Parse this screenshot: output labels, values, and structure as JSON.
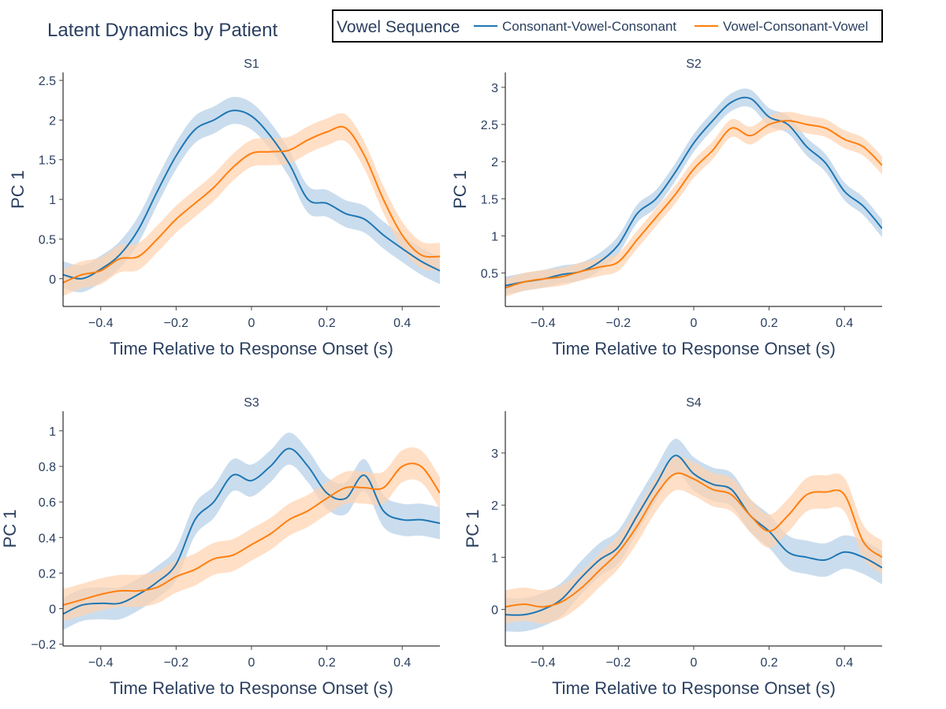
{
  "title": "Latent Dynamics by Patient",
  "legend": {
    "title": "Vowel Sequence",
    "placement": "top-right",
    "entries": [
      {
        "name": "Consonant-Vowel-Consonant",
        "color": "#1f77b4"
      },
      {
        "name": "Vowel-Consonant-Vowel",
        "color": "#ff7f0e"
      }
    ]
  },
  "colors": {
    "cvc": "#1f77b4",
    "cvc_band": "#b5d0e8",
    "vcv": "#ff7f0e",
    "vcv_band": "#ffd3b0"
  },
  "chart_data": [
    {
      "type": "line",
      "title": "S1",
      "xlabel": "Time Relative to Response Onset (s)",
      "ylabel": "PC 1",
      "xlim": [
        -0.5,
        0.5
      ],
      "ylim": [
        -0.35,
        2.6
      ],
      "xticks": [
        -0.4,
        -0.2,
        0,
        0.2,
        0.4
      ],
      "xtick_labels": [
        "−0.4",
        "−0.2",
        "0",
        "0.2",
        "0.4"
      ],
      "yticks": [
        0,
        0.5,
        1,
        1.5,
        2,
        2.5
      ],
      "ytick_labels": [
        "0",
        "0.5",
        "1",
        "1.5",
        "2",
        "2.5"
      ],
      "grid": false,
      "x": [
        -0.5,
        -0.45,
        -0.4,
        -0.35,
        -0.3,
        -0.25,
        -0.2,
        -0.15,
        -0.1,
        -0.05,
        0,
        0.05,
        0.1,
        0.15,
        0.2,
        0.25,
        0.3,
        0.35,
        0.4,
        0.45,
        0.5
      ],
      "series": [
        {
          "name": "Consonant-Vowel-Consonant",
          "values": [
            0.05,
            0.0,
            0.12,
            0.3,
            0.62,
            1.1,
            1.55,
            1.88,
            2.0,
            2.12,
            2.05,
            1.8,
            1.45,
            1.0,
            0.95,
            0.82,
            0.75,
            0.55,
            0.38,
            0.22,
            0.1
          ],
          "band": 0.17
        },
        {
          "name": "Vowel-Consonant-Vowel",
          "values": [
            -0.05,
            0.05,
            0.1,
            0.25,
            0.28,
            0.5,
            0.75,
            0.95,
            1.15,
            1.4,
            1.58,
            1.6,
            1.62,
            1.75,
            1.85,
            1.9,
            1.55,
            1.0,
            0.55,
            0.3,
            0.28
          ],
          "band": 0.17
        }
      ]
    },
    {
      "type": "line",
      "title": "S2",
      "xlabel": "Time Relative to Response Onset (s)",
      "ylabel": "PC 1",
      "xlim": [
        -0.5,
        0.5
      ],
      "ylim": [
        0.05,
        3.2
      ],
      "xticks": [
        -0.4,
        -0.2,
        0,
        0.2,
        0.4
      ],
      "xtick_labels": [
        "−0.4",
        "−0.2",
        "0",
        "0.2",
        "0.4"
      ],
      "yticks": [
        0.5,
        1,
        1.5,
        2,
        2.5,
        3
      ],
      "ytick_labels": [
        "0.5",
        "1",
        "1.5",
        "2",
        "2.5",
        "3"
      ],
      "grid": false,
      "x": [
        -0.5,
        -0.45,
        -0.4,
        -0.35,
        -0.3,
        -0.25,
        -0.2,
        -0.15,
        -0.1,
        -0.05,
        0,
        0.05,
        0.1,
        0.15,
        0.2,
        0.25,
        0.3,
        0.35,
        0.4,
        0.45,
        0.5
      ],
      "series": [
        {
          "name": "Consonant-Vowel-Consonant",
          "values": [
            0.33,
            0.38,
            0.42,
            0.48,
            0.52,
            0.65,
            0.88,
            1.3,
            1.5,
            1.85,
            2.25,
            2.55,
            2.8,
            2.85,
            2.6,
            2.5,
            2.2,
            1.98,
            1.6,
            1.4,
            1.1
          ],
          "band": 0.12
        },
        {
          "name": "Vowel-Consonant-Vowel",
          "values": [
            0.3,
            0.38,
            0.42,
            0.45,
            0.52,
            0.58,
            0.65,
            0.95,
            1.25,
            1.55,
            1.9,
            2.15,
            2.45,
            2.35,
            2.5,
            2.55,
            2.5,
            2.45,
            2.3,
            2.2,
            1.95
          ],
          "band": 0.12
        }
      ]
    },
    {
      "type": "line",
      "title": "S3",
      "xlabel": "Time Relative to Response Onset (s)",
      "ylabel": "PC 1",
      "xlim": [
        -0.5,
        0.5
      ],
      "ylim": [
        -0.21,
        1.11
      ],
      "xticks": [
        -0.4,
        -0.2,
        0,
        0.2,
        0.4
      ],
      "xtick_labels": [
        "−0.4",
        "−0.2",
        "0",
        "0.2",
        "0.4"
      ],
      "yticks": [
        -0.2,
        0,
        0.2,
        0.4,
        0.6,
        0.8,
        1
      ],
      "ytick_labels": [
        "−0.2",
        "0",
        "0.2",
        "0.4",
        "0.6",
        "0.8",
        "1"
      ],
      "grid": false,
      "x": [
        -0.5,
        -0.45,
        -0.4,
        -0.35,
        -0.3,
        -0.25,
        -0.2,
        -0.15,
        -0.1,
        -0.05,
        0,
        0.05,
        0.1,
        0.15,
        0.2,
        0.25,
        0.3,
        0.35,
        0.4,
        0.45,
        0.5
      ],
      "series": [
        {
          "name": "Consonant-Vowel-Consonant",
          "values": [
            -0.03,
            0.02,
            0.03,
            0.03,
            0.08,
            0.15,
            0.25,
            0.5,
            0.6,
            0.75,
            0.72,
            0.8,
            0.9,
            0.8,
            0.65,
            0.62,
            0.75,
            0.55,
            0.5,
            0.5,
            0.48
          ],
          "band": 0.09
        },
        {
          "name": "Vowel-Consonant-Vowel",
          "values": [
            0.02,
            0.05,
            0.08,
            0.1,
            0.1,
            0.12,
            0.18,
            0.22,
            0.28,
            0.3,
            0.36,
            0.42,
            0.5,
            0.55,
            0.62,
            0.68,
            0.68,
            0.68,
            0.8,
            0.8,
            0.65
          ],
          "band": 0.09
        }
      ]
    },
    {
      "type": "line",
      "title": "S4",
      "xlabel": "Time Relative to Response Onset (s)",
      "ylabel": "PC 1",
      "xlim": [
        -0.5,
        0.5
      ],
      "ylim": [
        -0.7,
        3.8
      ],
      "xticks": [
        -0.4,
        -0.2,
        0,
        0.2,
        0.4
      ],
      "xtick_labels": [
        "−0.4",
        "−0.2",
        "0",
        "0.2",
        "0.4"
      ],
      "yticks": [
        0,
        1,
        2,
        3
      ],
      "ytick_labels": [
        "0",
        "1",
        "2",
        "3"
      ],
      "grid": false,
      "x": [
        -0.5,
        -0.45,
        -0.4,
        -0.35,
        -0.3,
        -0.25,
        -0.2,
        -0.15,
        -0.1,
        -0.05,
        0,
        0.05,
        0.1,
        0.15,
        0.2,
        0.25,
        0.3,
        0.35,
        0.4,
        0.45,
        0.5
      ],
      "series": [
        {
          "name": "Consonant-Vowel-Consonant",
          "values": [
            -0.1,
            -0.1,
            0.0,
            0.2,
            0.6,
            0.95,
            1.2,
            1.8,
            2.4,
            2.95,
            2.6,
            2.4,
            2.3,
            1.8,
            1.5,
            1.1,
            1.0,
            0.95,
            1.1,
            1.0,
            0.8
          ],
          "band": 0.32
        },
        {
          "name": "Vowel-Consonant-Vowel",
          "values": [
            0.05,
            0.1,
            0.05,
            0.15,
            0.4,
            0.75,
            1.1,
            1.6,
            2.2,
            2.6,
            2.5,
            2.3,
            2.2,
            1.8,
            1.5,
            1.8,
            2.2,
            2.25,
            2.2,
            1.3,
            1.0
          ],
          "band": 0.32
        }
      ]
    }
  ]
}
